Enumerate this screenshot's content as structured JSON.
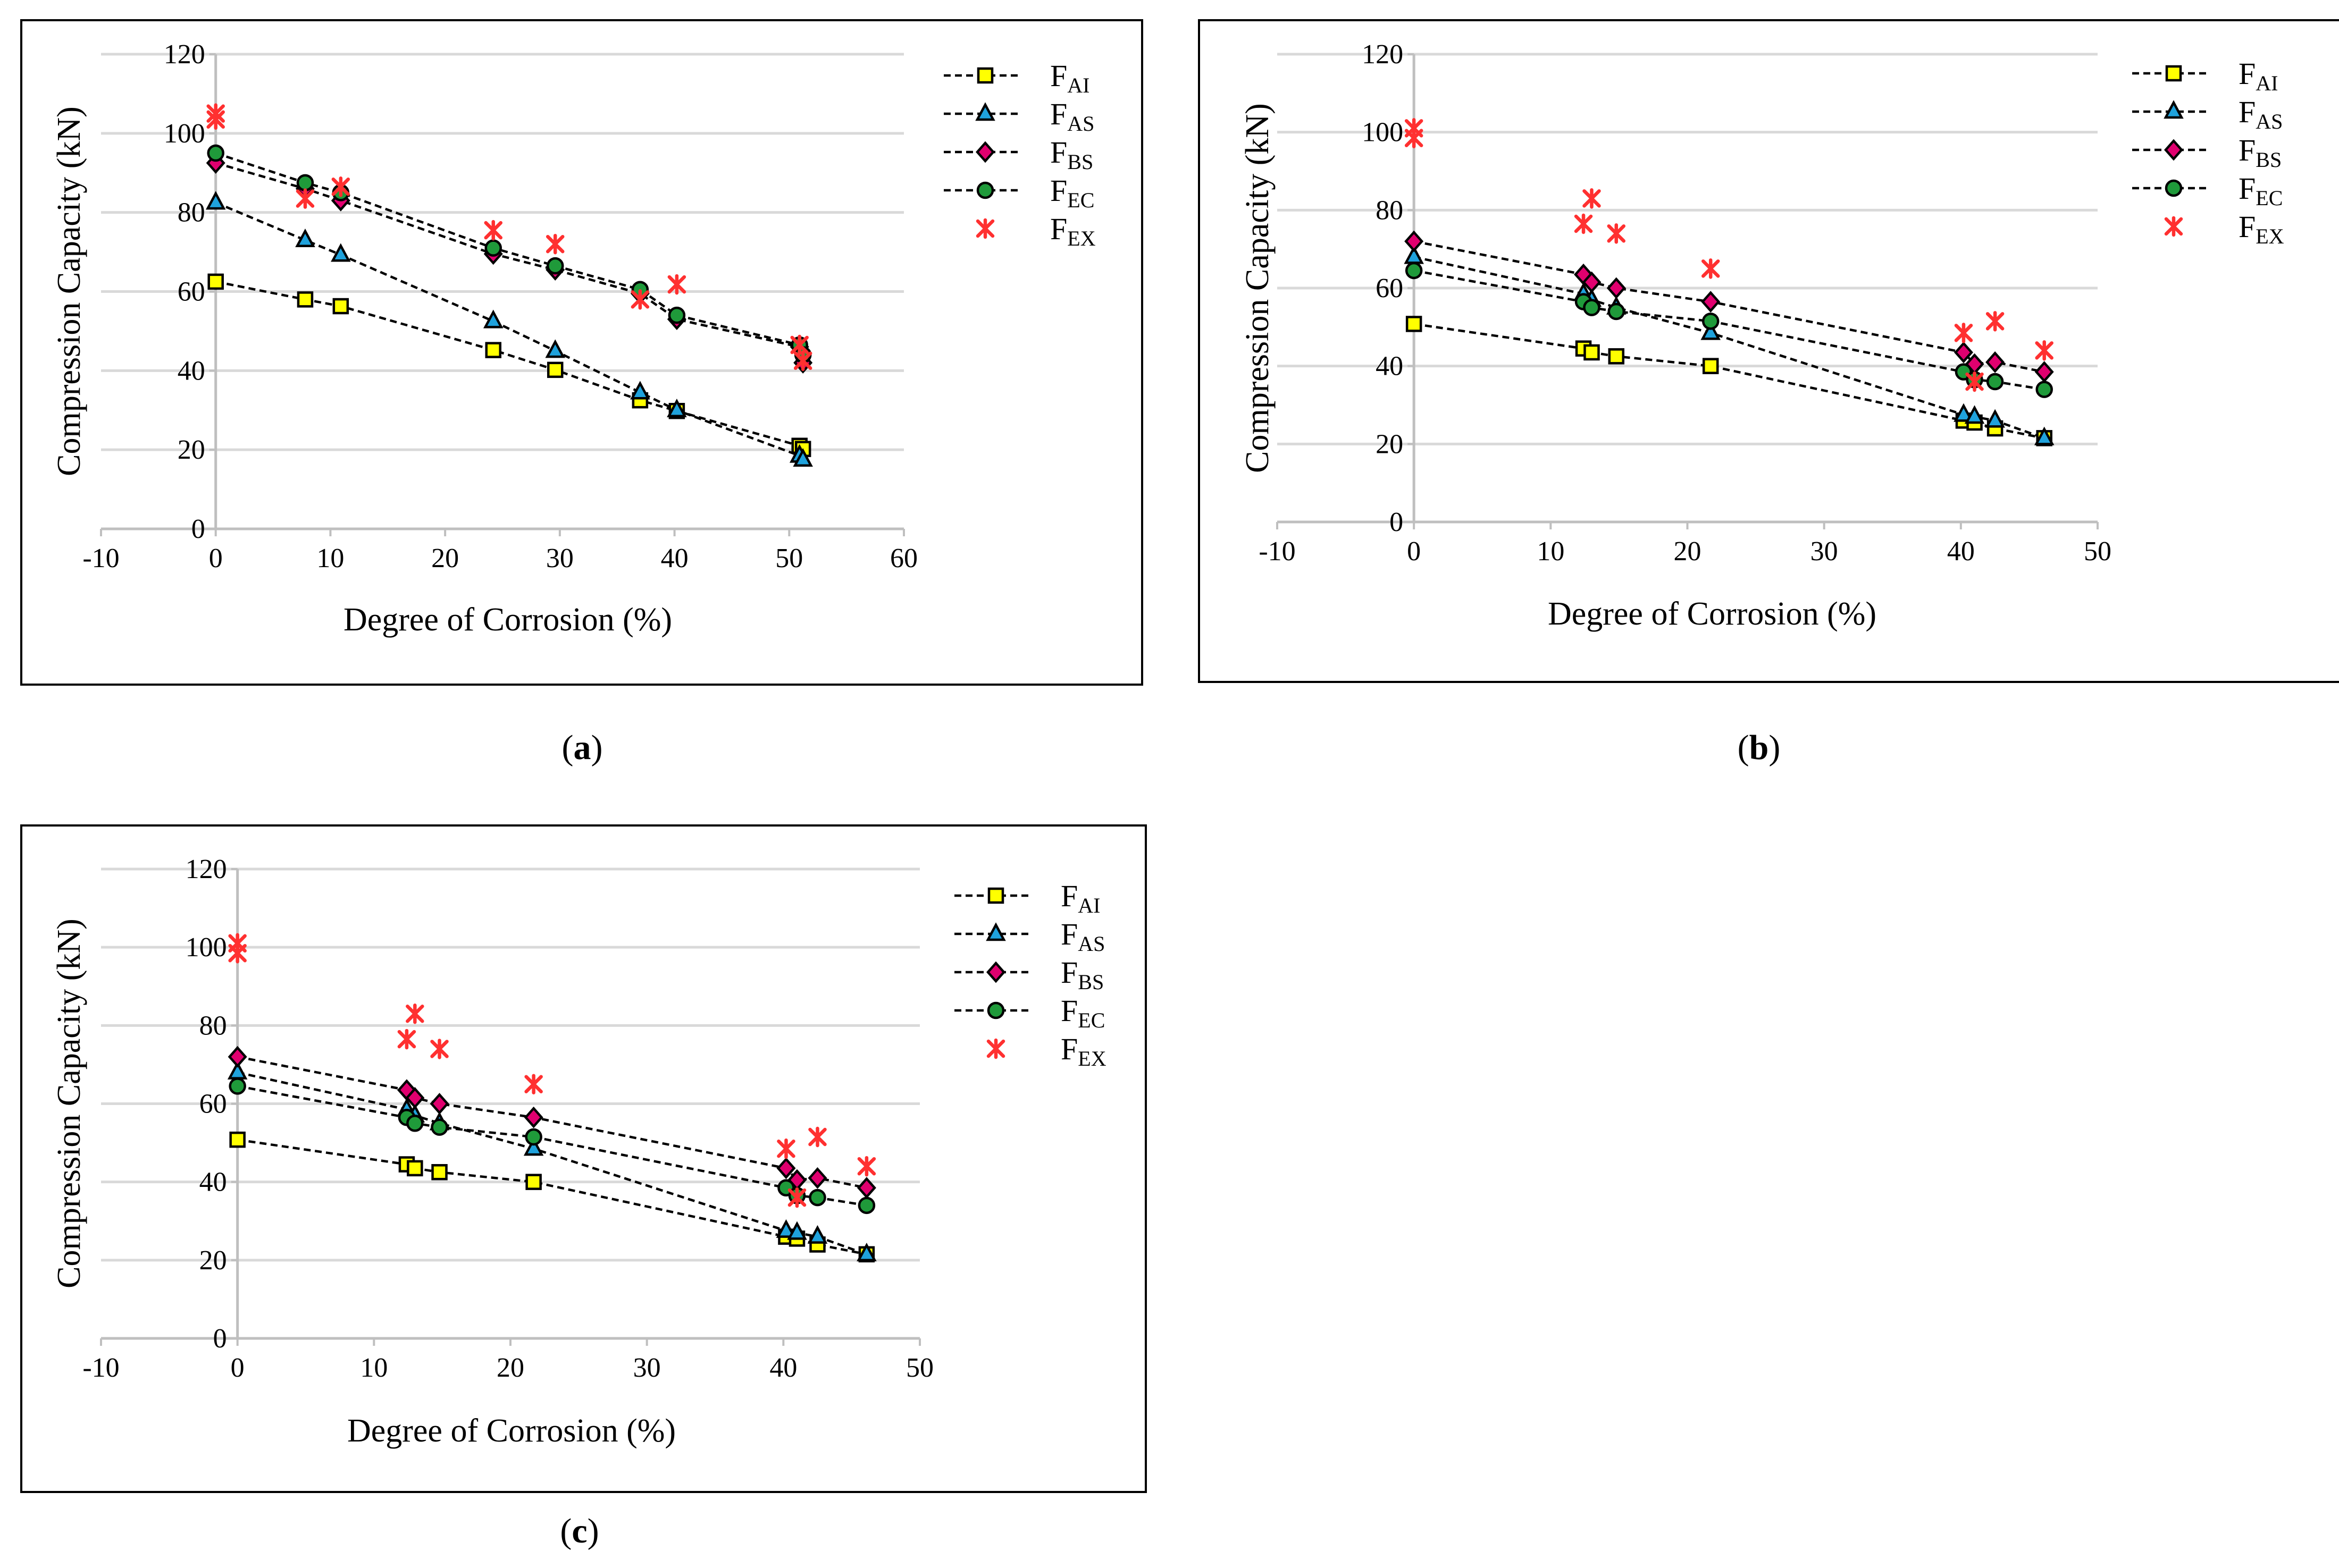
{
  "figure": {
    "colors": {
      "F_AI": "#ffff00",
      "F_AS": "#1fa2dc",
      "F_BS": "#e0006f",
      "F_EC": "#1f9a3a",
      "F_EX": "#ff3030",
      "grid": "#d9d9d9"
    },
    "panels": [
      {
        "caption": {
          "open": "(",
          "letter": "a",
          "close": ")"
        },
        "chart_data": {
          "type": "line",
          "xlabel": "Degree of Corrosion (%)",
          "ylabel": "Compression Capacity (kN)",
          "xlim": [
            -10,
            60
          ],
          "ylim": [
            0,
            120
          ],
          "xticks": [
            -10,
            0,
            10,
            20,
            30,
            40,
            50,
            60
          ],
          "yticks": [
            0,
            20,
            40,
            60,
            80,
            100,
            120
          ],
          "grid": "horizontal",
          "legend_position": "right",
          "series": [
            {
              "key": "F_AI",
              "name": "F",
              "sub": "AI",
              "marker": "square",
              "x": [
                0,
                7.8,
                10.9,
                24.2,
                29.6,
                37.0,
                40.2,
                50.9,
                51.2
              ],
              "values": [
                62.5,
                58.0,
                56.3,
                45.2,
                40.2,
                32.5,
                29.8,
                21.0,
                20.2
              ]
            },
            {
              "key": "F_AS",
              "name": "F",
              "sub": "AS",
              "marker": "triangle",
              "x": [
                0,
                7.8,
                10.9,
                24.2,
                29.6,
                37.0,
                40.2,
                50.9,
                51.2
              ],
              "values": [
                82.5,
                73.0,
                69.3,
                52.5,
                45.0,
                34.5,
                30.0,
                18.5,
                17.5
              ]
            },
            {
              "key": "F_BS",
              "name": "F",
              "sub": "BS",
              "marker": "diamond",
              "x": [
                0,
                7.8,
                10.9,
                24.2,
                29.6,
                37.0,
                40.2,
                50.9,
                51.2
              ],
              "values": [
                92.5,
                86.0,
                83.0,
                69.5,
                65.5,
                59.5,
                53.0,
                46.0,
                42.0
              ]
            },
            {
              "key": "F_EC",
              "name": "F",
              "sub": "EC",
              "marker": "circle",
              "x": [
                0,
                7.8,
                10.9,
                24.2,
                29.6,
                37.0,
                40.2,
                50.9,
                51.2
              ],
              "values": [
                95.0,
                87.5,
                85.0,
                71.0,
                66.5,
                60.5,
                54.0,
                46.5,
                44.0
              ]
            },
            {
              "key": "F_EX",
              "name": "F",
              "sub": "EX",
              "marker": "star",
              "x": [
                0,
                0,
                7.8,
                10.9,
                24.2,
                29.6,
                37.0,
                40.2,
                50.9,
                51.2
              ],
              "values": [
                105.0,
                103.5,
                83.5,
                86.5,
                75.5,
                72.0,
                58.0,
                61.8,
                46.5,
                42.5
              ]
            }
          ]
        }
      },
      {
        "caption": {
          "open": "(",
          "letter": "b",
          "close": ")"
        },
        "chart_data": {
          "type": "line",
          "xlabel": "Degree of Corrosion (%)",
          "ylabel": "Compression Capacity (kN)",
          "xlim": [
            -10,
            50
          ],
          "ylim": [
            0,
            120
          ],
          "xticks": [
            -10,
            0,
            10,
            20,
            30,
            40,
            50
          ],
          "yticks": [
            0,
            20,
            40,
            60,
            80,
            100,
            120
          ],
          "grid": "horizontal",
          "legend_position": "right",
          "series": [
            {
              "key": "F_AI",
              "name": "F",
              "sub": "AI",
              "marker": "square",
              "x": [
                0,
                12.4,
                13.0,
                14.8,
                21.7,
                40.2,
                41.0,
                42.5,
                46.1
              ],
              "values": [
                50.8,
                44.5,
                43.5,
                42.5,
                40.0,
                26.0,
                25.5,
                24.0,
                21.5
              ]
            },
            {
              "key": "F_AS",
              "name": "F",
              "sub": "AS",
              "marker": "triangle",
              "x": [
                0,
                12.4,
                13.0,
                14.8,
                21.7,
                40.2,
                41.0,
                42.5,
                46.1
              ],
              "values": [
                68.0,
                58.5,
                57.0,
                55.0,
                48.5,
                27.5,
                27.0,
                26.0,
                21.5
              ]
            },
            {
              "key": "F_BS",
              "name": "F",
              "sub": "BS",
              "marker": "diamond",
              "x": [
                0,
                12.4,
                13.0,
                14.8,
                21.7,
                40.2,
                41.0,
                42.5,
                46.1
              ],
              "values": [
                72.0,
                63.5,
                61.5,
                60.0,
                56.5,
                43.5,
                40.5,
                41.0,
                38.5
              ]
            },
            {
              "key": "F_EC",
              "name": "F",
              "sub": "EC",
              "marker": "circle",
              "x": [
                0,
                12.4,
                13.0,
                14.8,
                21.7,
                40.2,
                41.0,
                42.5,
                46.1
              ],
              "values": [
                64.5,
                56.5,
                55.0,
                54.0,
                51.5,
                38.5,
                36.5,
                36.0,
                34.0
              ]
            },
            {
              "key": "F_EX",
              "name": "F",
              "sub": "EX",
              "marker": "star",
              "x": [
                0,
                0,
                12.4,
                13.0,
                14.8,
                21.7,
                40.2,
                41.0,
                42.5,
                46.1
              ],
              "values": [
                101.0,
                98.5,
                76.5,
                83.0,
                74.0,
                65.0,
                48.5,
                36.0,
                51.5,
                44.0
              ]
            }
          ]
        }
      },
      {
        "caption": {
          "open": "(",
          "letter": "c",
          "close": ")"
        },
        "chart_data": {
          "type": "line",
          "xlabel": "Degree of Corrosion (%)",
          "ylabel": "Compression Capacity (kN)",
          "xlim": [
            -10,
            50
          ],
          "ylim": [
            0,
            120
          ],
          "xticks": [
            -10,
            0,
            10,
            20,
            30,
            40,
            50
          ],
          "yticks": [
            0,
            20,
            40,
            60,
            80,
            100,
            120
          ],
          "grid": "horizontal",
          "legend_position": "right",
          "series": [
            {
              "key": "F_AI",
              "name": "F",
              "sub": "AI",
              "marker": "square",
              "x": [
                0,
                12.4,
                13.0,
                14.8,
                21.7,
                40.2,
                41.0,
                42.5,
                46.1
              ],
              "values": [
                50.8,
                44.5,
                43.5,
                42.5,
                40.0,
                26.0,
                25.5,
                24.0,
                21.5
              ]
            },
            {
              "key": "F_AS",
              "name": "F",
              "sub": "AS",
              "marker": "triangle",
              "x": [
                0,
                12.4,
                13.0,
                14.8,
                21.7,
                40.2,
                41.0,
                42.5,
                46.1
              ],
              "values": [
                68.0,
                58.5,
                57.0,
                55.0,
                48.5,
                27.5,
                27.0,
                26.0,
                21.5
              ]
            },
            {
              "key": "F_BS",
              "name": "F",
              "sub": "BS",
              "marker": "diamond",
              "x": [
                0,
                12.4,
                13.0,
                14.8,
                21.7,
                40.2,
                41.0,
                42.5,
                46.1
              ],
              "values": [
                72.0,
                63.5,
                61.5,
                60.0,
                56.5,
                43.5,
                40.5,
                41.0,
                38.5
              ]
            },
            {
              "key": "F_EC",
              "name": "F",
              "sub": "EC",
              "marker": "circle",
              "x": [
                0,
                12.4,
                13.0,
                14.8,
                21.7,
                40.2,
                41.0,
                42.5,
                46.1
              ],
              "values": [
                64.5,
                56.5,
                55.0,
                54.0,
                51.5,
                38.5,
                36.5,
                36.0,
                34.0
              ]
            },
            {
              "key": "F_EX",
              "name": "F",
              "sub": "EX",
              "marker": "star",
              "x": [
                0,
                0,
                12.4,
                13.0,
                14.8,
                21.7,
                40.2,
                41.0,
                42.5,
                46.1
              ],
              "values": [
                101.0,
                98.5,
                76.5,
                83.0,
                74.0,
                65.0,
                48.5,
                36.0,
                51.5,
                44.0
              ]
            }
          ]
        }
      }
    ]
  }
}
